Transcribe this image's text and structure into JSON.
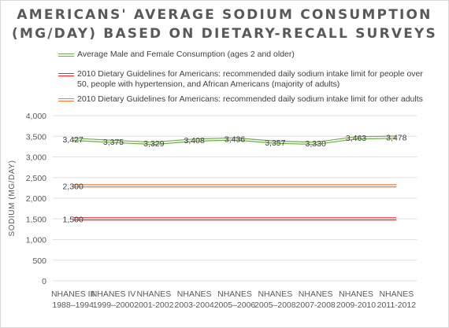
{
  "title_line1": "AMERICANS' AVERAGE SODIUM CONSUMPTION",
  "title_line2": "(MG/DAY) BASED ON DIETARY-RECALL SURVEYS",
  "colors": {
    "series_avg": "#70ad47",
    "series_limit_1500": "#e8282e",
    "series_limit_2300": "#ed7d31",
    "gridline": "#e0e0e0",
    "text": "#595959"
  },
  "legend": {
    "items": [
      {
        "label": "Average Male and Female Consumption (ages 2 and older)",
        "color": "#70ad47"
      },
      {
        "label": "2010 Dietary Guidelines for Americans: recommended daily sodium intake limit for people over 50, people with hypertension, and African Americans (majority of adults)",
        "color": "#e8282e"
      },
      {
        "label": "2010 Dietary Guidelines for Americans: recommended daily sodium intake limit for other adults",
        "color": "#ed7d31"
      }
    ]
  },
  "chart_data": {
    "type": "line",
    "title": "AMERICANS' AVERAGE SODIUM CONSUMPTION (MG/DAY) BASED ON DIETARY-RECALL SURVEYS",
    "xlabel": "",
    "ylabel": "SODIUM (MG/DAY)",
    "ylim": [
      0,
      4000
    ],
    "yticks": [
      "0",
      "500",
      "1,000",
      "1,500",
      "2,000",
      "2,500",
      "3,000",
      "3,500",
      "4,000"
    ],
    "grid": true,
    "legend_position": "top",
    "categories": [
      [
        "NHANES III",
        "1988–1994"
      ],
      [
        "NHANES IV",
        "1999–2000"
      ],
      [
        "NHANES",
        "2001-2002"
      ],
      [
        "NHANES",
        "2003-2004"
      ],
      [
        "NHANES",
        "2005–2006"
      ],
      [
        "NHANES",
        "2005–2008"
      ],
      [
        "NHANES",
        "2007-2008"
      ],
      [
        "NHANES",
        "2009-2010"
      ],
      [
        "NHANES",
        "2011-2012"
      ]
    ],
    "series": [
      {
        "name": "Average Male and Female Consumption (ages 2 and older)",
        "values": [
          3427,
          3375,
          3329,
          3408,
          3436,
          3357,
          3330,
          3463,
          3478
        ],
        "labels": [
          "3,427",
          "3,375",
          "3,329",
          "3,408",
          "3,436",
          "3,357",
          "3,330",
          "3,463",
          "3,478"
        ],
        "color": "#70ad47",
        "label_first_only": false
      },
      {
        "name": "2010 Dietary Guidelines for Americans: recommended daily sodium intake limit for people over 50, people with hypertension, and African Americans (majority of adults)",
        "values": [
          1500,
          1500,
          1500,
          1500,
          1500,
          1500,
          1500,
          1500,
          1500
        ],
        "labels": [
          "1,500"
        ],
        "color": "#e8282e",
        "label_first_only": true
      },
      {
        "name": "2010 Dietary Guidelines for Americans: recommended daily sodium intake limit for other adults",
        "values": [
          2300,
          2300,
          2300,
          2300,
          2300,
          2300,
          2300,
          2300,
          2300
        ],
        "labels": [
          "2,300"
        ],
        "color": "#ed7d31",
        "label_first_only": true
      }
    ]
  }
}
